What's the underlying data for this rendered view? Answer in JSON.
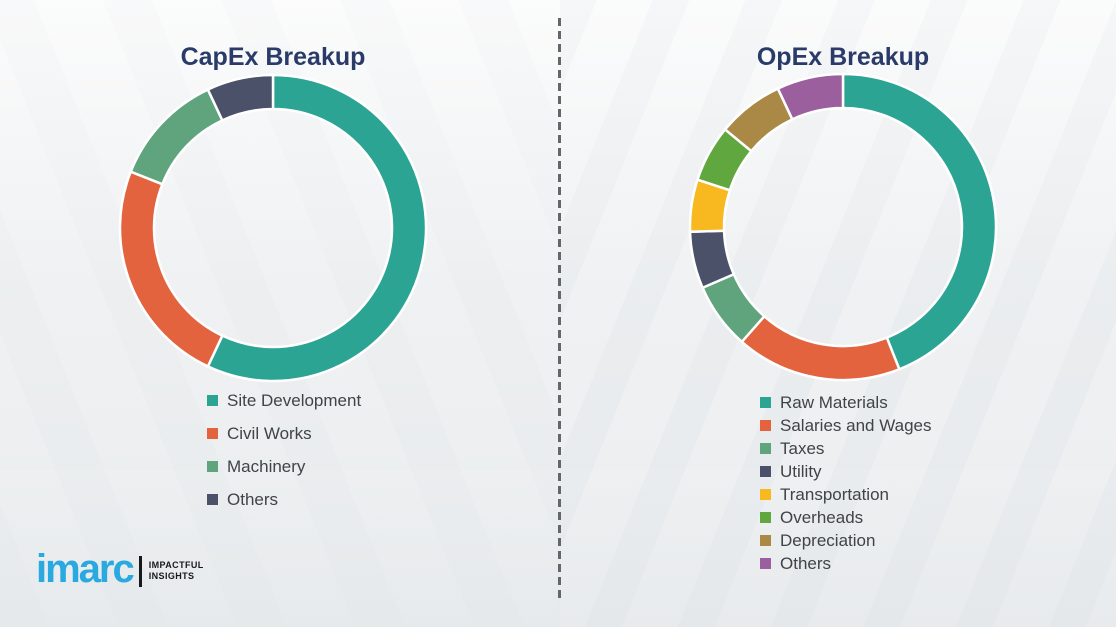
{
  "page": {
    "background_color": "#F2F3F4",
    "divider_color": "#63676B"
  },
  "brand": {
    "logo_text": "imarc",
    "tagline_line1": "IMPACTFUL",
    "tagline_line2": "INSIGHTS",
    "logo_color": "#29A9E0"
  },
  "chart_data": [
    {
      "type": "pie",
      "subtype": "donut",
      "title": "CapEx Breakup",
      "title_color": "#2B3B69",
      "labels": [
        "Site Development",
        "Civil Works",
        "Machinery",
        "Others"
      ],
      "values": [
        57,
        24,
        12,
        7
      ],
      "colors": [
        "#2BA494",
        "#E2633E",
        "#5FA47D",
        "#4A5168"
      ],
      "start_angle_deg": 0,
      "direction": "clockwise",
      "data_labels": false,
      "legend_position": "below-left"
    },
    {
      "type": "pie",
      "subtype": "donut",
      "title": "OpEx Breakup",
      "title_color": "#2B3B69",
      "labels": [
        "Raw Materials",
        "Salaries and Wages",
        "Taxes",
        "Utility",
        "Transportation",
        "Overheads",
        "Depreciation",
        "Others"
      ],
      "values": [
        44,
        17.5,
        7,
        6,
        5.5,
        6,
        7,
        7
      ],
      "colors": [
        "#2BA494",
        "#E2633E",
        "#5FA47D",
        "#4A5168",
        "#F8B820",
        "#61A73F",
        "#A98945",
        "#9B5F9E"
      ],
      "start_angle_deg": 0,
      "direction": "clockwise",
      "data_labels": false,
      "legend_position": "below-left"
    }
  ]
}
